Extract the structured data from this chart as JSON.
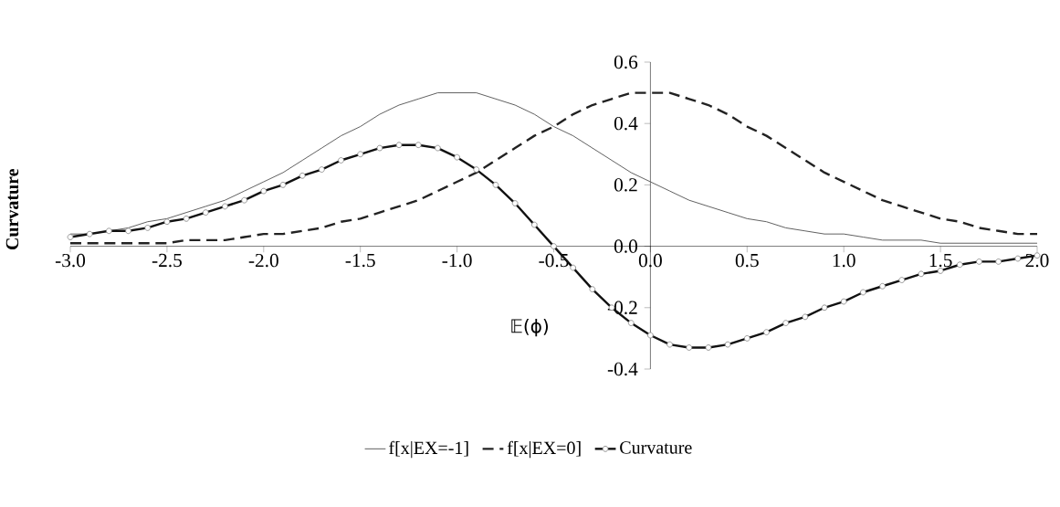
{
  "chart_data": {
    "type": "line",
    "xlabel": "𝔼(ϕ)",
    "ylabel": "Curvature",
    "x": [
      -3.0,
      -2.9,
      -2.8,
      -2.7,
      -2.6,
      -2.5,
      -2.4,
      -2.3,
      -2.2,
      -2.1,
      -2.0,
      -1.9,
      -1.8,
      -1.7,
      -1.6,
      -1.5,
      -1.4,
      -1.3,
      -1.2,
      -1.1,
      -1.0,
      -0.9,
      -0.8,
      -0.7,
      -0.6,
      -0.5,
      -0.4,
      -0.3,
      -0.2,
      -0.1,
      0.0,
      0.1,
      0.2,
      0.3,
      0.4,
      0.5,
      0.6,
      0.7,
      0.8,
      0.9,
      1.0,
      1.1,
      1.2,
      1.3,
      1.4,
      1.5,
      1.6,
      1.7,
      1.8,
      1.9,
      2.0
    ],
    "series": [
      {
        "name": "f[x|EX=-1]",
        "color": "#555555",
        "line_style": "solid",
        "marker": "none",
        "values": [
          0.04,
          0.04,
          0.05,
          0.06,
          0.08,
          0.09,
          0.11,
          0.13,
          0.15,
          0.18,
          0.21,
          0.24,
          0.28,
          0.32,
          0.36,
          0.39,
          0.43,
          0.46,
          0.48,
          0.5,
          0.5,
          0.5,
          0.48,
          0.46,
          0.43,
          0.39,
          0.36,
          0.32,
          0.28,
          0.24,
          0.21,
          0.18,
          0.15,
          0.13,
          0.11,
          0.09,
          0.08,
          0.06,
          0.05,
          0.04,
          0.04,
          0.03,
          0.02,
          0.02,
          0.02,
          0.01,
          0.01,
          0.01,
          0.01,
          0.01,
          0.01
        ]
      },
      {
        "name": "f[x|EX=0]",
        "color": "#222222",
        "line_style": "dashed",
        "marker": "none",
        "values": [
          0.01,
          0.01,
          0.01,
          0.01,
          0.01,
          0.01,
          0.02,
          0.02,
          0.02,
          0.03,
          0.04,
          0.04,
          0.05,
          0.06,
          0.08,
          0.09,
          0.11,
          0.13,
          0.15,
          0.18,
          0.21,
          0.24,
          0.28,
          0.32,
          0.36,
          0.39,
          0.43,
          0.46,
          0.48,
          0.5,
          0.5,
          0.5,
          0.48,
          0.46,
          0.43,
          0.39,
          0.36,
          0.32,
          0.28,
          0.24,
          0.21,
          0.18,
          0.15,
          0.13,
          0.11,
          0.09,
          0.08,
          0.06,
          0.05,
          0.04,
          0.04
        ]
      },
      {
        "name": "Curvature",
        "color": "#111111",
        "line_style": "solid",
        "marker": "circle",
        "values": [
          0.03,
          0.04,
          0.05,
          0.05,
          0.06,
          0.08,
          0.09,
          0.11,
          0.13,
          0.15,
          0.18,
          0.2,
          0.23,
          0.25,
          0.28,
          0.3,
          0.32,
          0.33,
          0.33,
          0.32,
          0.29,
          0.25,
          0.2,
          0.14,
          0.07,
          0.0,
          -0.07,
          -0.14,
          -0.2,
          -0.25,
          -0.29,
          -0.32,
          -0.33,
          -0.33,
          -0.32,
          -0.3,
          -0.28,
          -0.25,
          -0.23,
          -0.2,
          -0.18,
          -0.15,
          -0.13,
          -0.11,
          -0.09,
          -0.08,
          -0.06,
          -0.05,
          -0.05,
          -0.04,
          -0.03
        ]
      }
    ],
    "xlim": [
      -3.0,
      2.0
    ],
    "xticks": [
      {
        "value": -3.0,
        "label": "-3.0"
      },
      {
        "value": -2.5,
        "label": "-2.5"
      },
      {
        "value": -2.0,
        "label": "-2.0"
      },
      {
        "value": -1.5,
        "label": "-1.5"
      },
      {
        "value": -1.0,
        "label": "-1.0"
      },
      {
        "value": -0.5,
        "label": "-0.5"
      },
      {
        "value": 0.0,
        "label": "0.0"
      },
      {
        "value": 0.5,
        "label": "0.5"
      },
      {
        "value": 1.0,
        "label": "1.0"
      },
      {
        "value": 1.5,
        "label": "1.5"
      },
      {
        "value": 2.0,
        "label": "2.0"
      }
    ],
    "ylim": [
      -0.4,
      0.6
    ],
    "yticks": [
      {
        "value": -0.4,
        "label": "-0.4"
      },
      {
        "value": -0.2,
        "label": "-0.2"
      },
      {
        "value": 0.0,
        "label": "0.0"
      },
      {
        "value": 0.2,
        "label": "0.2"
      },
      {
        "value": 0.4,
        "label": "0.4"
      },
      {
        "value": 0.6,
        "label": "0.6"
      }
    ],
    "grid": false,
    "legend": "bottom"
  }
}
